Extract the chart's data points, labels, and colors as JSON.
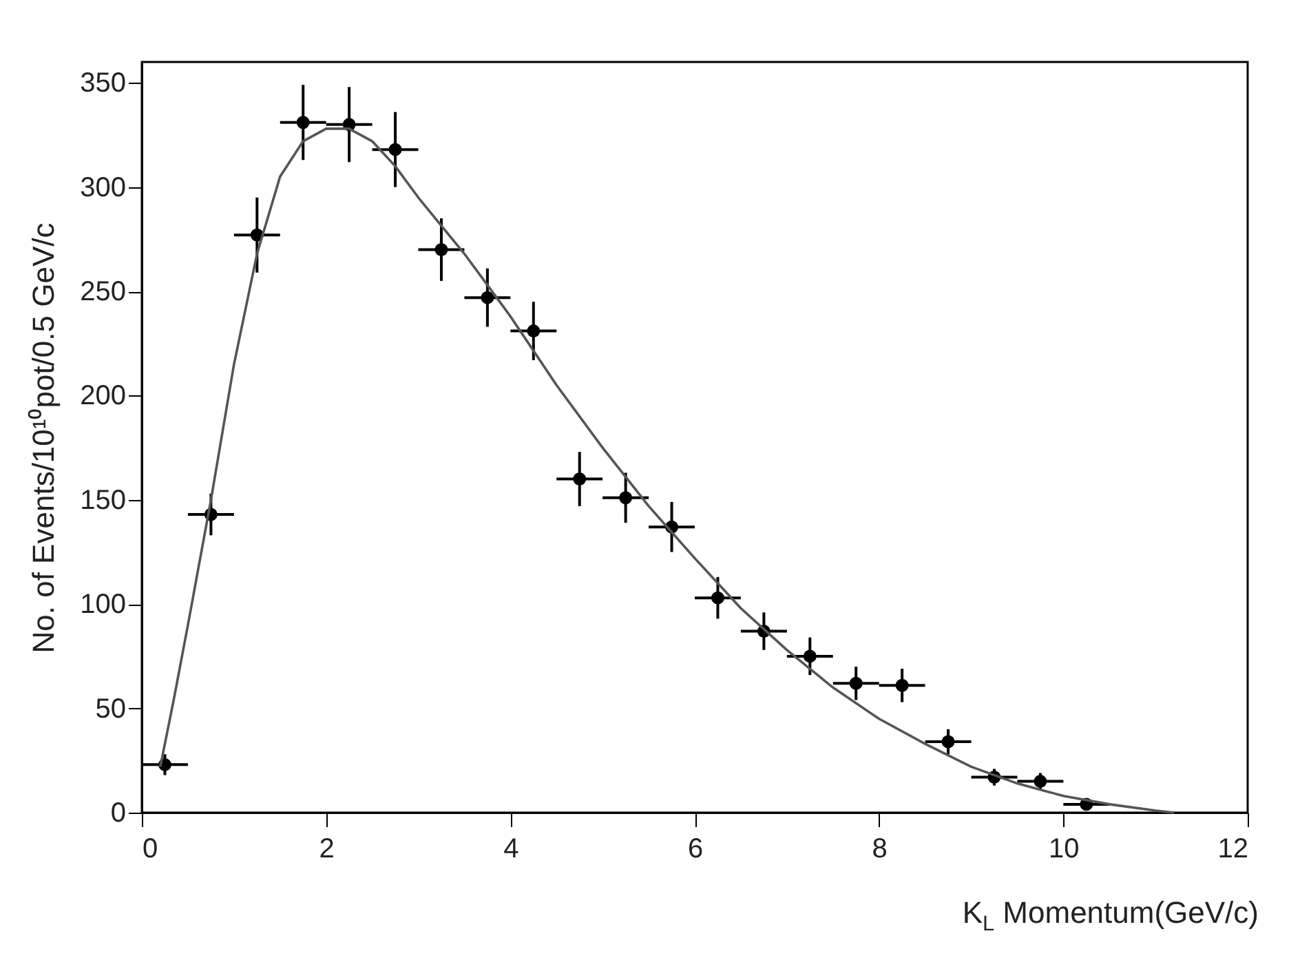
{
  "chart_data": {
    "type": "scatter",
    "xlabel": "K$_{L}$ Momentum(GeV/c)",
    "ylabel": "No. of Events/10¹⁰pot/0.5 GeV/c",
    "xlim": [
      0,
      12
    ],
    "ylim": [
      0,
      360
    ],
    "xticks": [
      0,
      2,
      4,
      6,
      8,
      10,
      12
    ],
    "yticks": [
      0,
      50,
      100,
      150,
      200,
      250,
      300,
      350
    ],
    "series": [
      {
        "color": "#000000",
        "marker": "circle",
        "x": [
          0.25,
          0.75,
          1.25,
          1.75,
          2.25,
          2.75,
          3.25,
          3.75,
          4.25,
          4.75,
          5.25,
          5.75,
          6.25,
          6.75,
          7.25,
          7.75,
          8.25,
          8.75,
          9.25,
          9.75,
          10.25
        ],
        "values": [
          23,
          143,
          277,
          331,
          330,
          318,
          270,
          247,
          231,
          160,
          151,
          137,
          103,
          87,
          75,
          62,
          61,
          34,
          17,
          15,
          4
        ],
        "errors": [
          5,
          10,
          18,
          18,
          18,
          18,
          15,
          14,
          14,
          13,
          12,
          12,
          10,
          9,
          9,
          8,
          8,
          6,
          4,
          4,
          2
        ],
        "xerrors": [
          0.25,
          0.25,
          0.25,
          0.25,
          0.25,
          0.25,
          0.25,
          0.25,
          0.25,
          0.25,
          0.25,
          0.25,
          0.25,
          0.25,
          0.25,
          0.25,
          0.25,
          0.25,
          0.25,
          0.25,
          0.25
        ]
      },
      {
        "type": "line",
        "color": "#555555",
        "x": [
          0.2,
          0.35,
          0.5,
          0.75,
          1,
          1.25,
          1.5,
          1.75,
          2,
          2.25,
          2.5,
          2.75,
          3,
          3.5,
          4,
          4.5,
          5,
          5.5,
          6,
          6.5,
          7,
          7.5,
          8,
          8.5,
          9,
          9.5,
          10,
          10.5,
          11,
          11.2
        ],
        "values": [
          22,
          55,
          90,
          150,
          215,
          268,
          305,
          322,
          328,
          328,
          322,
          310,
          295,
          268,
          238,
          205,
          175,
          147,
          122,
          98,
          78,
          60,
          45,
          33,
          22,
          14,
          8,
          4,
          1,
          0
        ]
      }
    ]
  }
}
